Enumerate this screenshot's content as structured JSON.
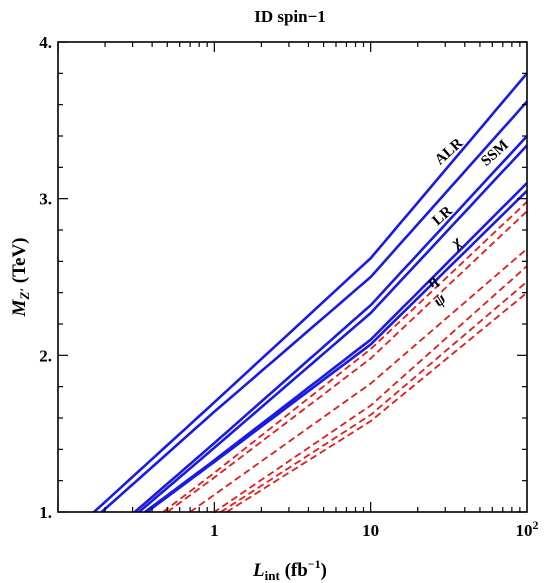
{
  "chart_data": {
    "type": "line",
    "title": "ID spin−1",
    "xlabel_main": "L",
    "xlabel_sub": "int",
    "xlabel_unit_pre": " (fb",
    "xlabel_unit_sup": "−1",
    "xlabel_unit_post": ")",
    "ylabel_main": "M",
    "ylabel_sub": "Z′",
    "ylabel_unit": " (TeV)",
    "xscale": "log",
    "xlim": [
      0.1,
      100
    ],
    "ylim": [
      1.0,
      4.0
    ],
    "xticks": [
      {
        "value": 1,
        "label": "1"
      },
      {
        "value": 10,
        "label": "10"
      },
      {
        "value": 100,
        "label": "10",
        "sup": "2"
      }
    ],
    "yticks": [
      {
        "value": 1,
        "label": "1."
      },
      {
        "value": 2,
        "label": "2."
      },
      {
        "value": 3,
        "label": "3."
      },
      {
        "value": 4,
        "label": "4."
      }
    ],
    "series": [
      {
        "name": "ALR",
        "style": "solid",
        "color": "#1a1ae6",
        "x": [
          0.17,
          1,
          10,
          100
        ],
        "y": [
          1.0,
          1.7,
          2.62,
          3.8
        ]
      },
      {
        "name": "SSM",
        "style": "solid",
        "color": "#1a1ae6",
        "x": [
          0.19,
          1,
          10,
          100
        ],
        "y": [
          1.0,
          1.64,
          2.5,
          3.62
        ]
      },
      {
        "name": "LR",
        "style": "solid",
        "color": "#1a1ae6",
        "x": [
          0.31,
          1,
          10,
          100
        ],
        "y": [
          1.0,
          1.44,
          2.32,
          3.4
        ]
      },
      {
        "name": "χ",
        "style": "solid",
        "color": "#1a1ae6",
        "x": [
          0.33,
          1,
          10,
          100
        ],
        "y": [
          1.0,
          1.41,
          2.27,
          3.34
        ]
      },
      {
        "name": "η",
        "style": "solid",
        "color": "#1a1ae6",
        "x": [
          0.36,
          1,
          10,
          100
        ],
        "y": [
          1.0,
          1.33,
          2.1,
          3.1
        ]
      },
      {
        "name": "ψ",
        "style": "solid",
        "color": "#1a1ae6",
        "x": [
          0.37,
          1,
          10,
          100
        ],
        "y": [
          1.0,
          1.32,
          2.07,
          3.05
        ]
      },
      {
        "name": "",
        "style": "dashed",
        "color": "#e61a1a",
        "x": [
          0.47,
          1,
          10,
          100
        ],
        "y": [
          1.0,
          1.25,
          2.04,
          2.98
        ]
      },
      {
        "name": "",
        "style": "dashed",
        "color": "#e61a1a",
        "x": [
          0.5,
          1,
          10,
          100
        ],
        "y": [
          1.0,
          1.22,
          1.98,
          2.92
        ]
      },
      {
        "name": "",
        "style": "dashed",
        "color": "#e61a1a",
        "x": [
          0.7,
          1,
          10,
          100
        ],
        "y": [
          1.0,
          1.11,
          1.82,
          2.68
        ]
      },
      {
        "name": "",
        "style": "dashed",
        "color": "#e61a1a",
        "x": [
          1.02,
          1,
          10,
          100
        ],
        "y": [
          1.0,
          1.0,
          1.68,
          2.57
        ]
      },
      {
        "name": "",
        "style": "dashed",
        "color": "#e61a1a",
        "x": [
          1.1,
          10,
          100
        ],
        "y": [
          1.0,
          1.62,
          2.47
        ]
      },
      {
        "name": "",
        "style": "dashed",
        "color": "#e61a1a",
        "x": [
          1.2,
          10,
          100
        ],
        "y": [
          1.0,
          1.58,
          2.4
        ]
      }
    ],
    "annotations": [
      {
        "text": "ALR",
        "x": 33,
        "y": 3.28,
        "rotate": -42,
        "italic": false
      },
      {
        "text": "SSM",
        "x": 65,
        "y": 3.27,
        "rotate": -42,
        "italic": false
      },
      {
        "text": "LR",
        "x": 30,
        "y": 2.87,
        "rotate": -42,
        "italic": false
      },
      {
        "text": "χ",
        "x": 37,
        "y": 2.7,
        "rotate": -42,
        "italic": true
      },
      {
        "text": "η",
        "x": 26,
        "y": 2.45,
        "rotate": -42,
        "italic": true
      },
      {
        "text": "ψ",
        "x": 29,
        "y": 2.33,
        "rotate": -42,
        "italic": true
      }
    ],
    "grid": false,
    "legend": "none"
  }
}
